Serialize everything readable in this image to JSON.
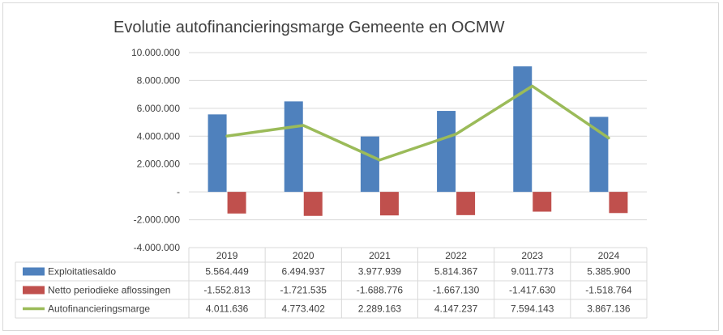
{
  "chart_data": {
    "type": "bar",
    "title": "Evolutie autofinancieringsmarge Gemeente en OCMW",
    "categories": [
      "2019",
      "2020",
      "2021",
      "2022",
      "2023",
      "2024"
    ],
    "y_ticks": [
      "10.000.000",
      "8.000.000",
      "6.000.000",
      "4.000.000",
      "2.000.000",
      "-",
      "-2.000.000",
      "-4.000.000"
    ],
    "ylim": [
      -4000000,
      10000000
    ],
    "grid": true,
    "legend_placement": "data-table",
    "series": [
      {
        "name": "Exploitatiesaldo",
        "kind": "bar",
        "color": "#4f81bd",
        "values": [
          5564449,
          6494937,
          3977939,
          5814367,
          9011773,
          5385900
        ],
        "labels": [
          "5.564.449",
          "6.494.937",
          "3.977.939",
          "5.814.367",
          "9.011.773",
          "5.385.900"
        ]
      },
      {
        "name": "Netto periodieke aflossingen",
        "kind": "bar",
        "color": "#c0504d",
        "values": [
          -1552813,
          -1721535,
          -1688776,
          -1667130,
          -1417630,
          -1518764
        ],
        "labels": [
          "-1.552.813",
          "-1.721.535",
          "-1.688.776",
          "-1.667.130",
          "-1.417.630",
          "-1.518.764"
        ]
      },
      {
        "name": "Autofinancieringsmarge",
        "kind": "line",
        "color": "#9bbb59",
        "values": [
          4011636,
          4773402,
          2289163,
          4147237,
          7594143,
          3867136
        ],
        "labels": [
          "4.011.636",
          "4.773.402",
          "2.289.163",
          "4.147.237",
          "7.594.143",
          "3.867.136"
        ]
      }
    ]
  }
}
